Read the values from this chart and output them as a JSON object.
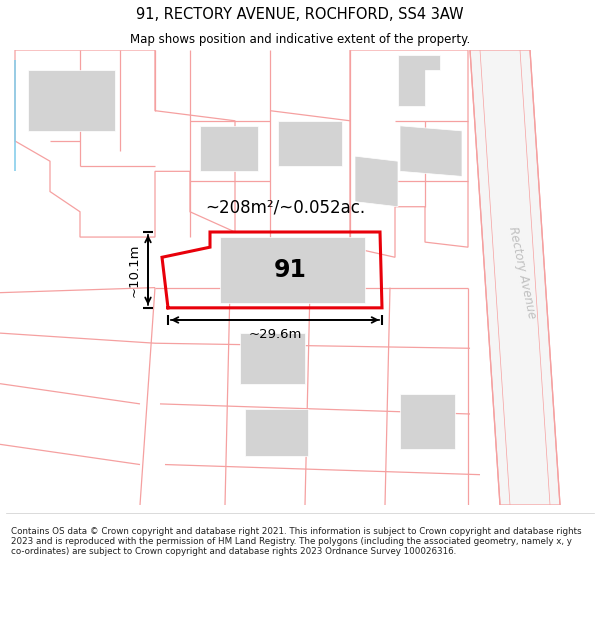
{
  "title": "91, RECTORY AVENUE, ROCHFORD, SS4 3AW",
  "subtitle": "Map shows position and indicative extent of the property.",
  "footer": "Contains OS data © Crown copyright and database right 2021. This information is subject to Crown copyright and database rights 2023 and is reproduced with the permission of HM Land Registry. The polygons (including the associated geometry, namely x, y co-ordinates) are subject to Crown copyright and database rights 2023 Ordnance Survey 100026316.",
  "area_label": "~208m²/~0.052ac.",
  "width_label": "~29.6m",
  "height_label": "~10.1m",
  "property_number": "91",
  "bg_color": "#ffffff",
  "boundary_color": "#e8000a",
  "cadastral_color": "#f5a0a0",
  "building_color": "#d3d3d3",
  "road_text_color": "#c0c0c0",
  "title_color": "#000000",
  "cyan_line": "#87CEEB"
}
